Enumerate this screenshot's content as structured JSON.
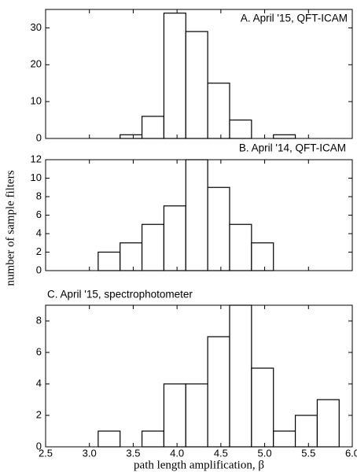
{
  "chart_data": [
    {
      "type": "histogram",
      "title": "A. April '15, QFT-ICAM",
      "title_position": "inside-right",
      "bins": [
        3.35,
        3.6,
        3.85,
        4.1,
        4.35,
        4.6,
        4.85,
        5.1,
        5.35
      ],
      "counts": [
        1,
        6,
        34,
        29,
        15,
        5,
        0,
        1
      ],
      "color": "#ffffff",
      "xlim": [
        2.5,
        6
      ],
      "ylim": [
        0,
        35
      ],
      "yticks": [
        0,
        10,
        20,
        30
      ]
    },
    {
      "type": "histogram",
      "title": "B. April '14, QFT-ICAM",
      "title_position": "above-right",
      "ylabel": "number of sample filters",
      "bins": [
        3.1,
        3.35,
        3.6,
        3.85,
        4.1,
        4.35,
        4.6,
        4.85,
        5.1
      ],
      "counts": [
        2,
        3,
        5,
        7,
        12,
        9,
        5,
        3
      ],
      "color": "#ffffff",
      "xlim": [
        2.5,
        6
      ],
      "ylim": [
        0,
        12
      ],
      "yticks": [
        0,
        2,
        4,
        6,
        8,
        10,
        12
      ]
    },
    {
      "type": "histogram",
      "title": "C. April '15, spectrophotometer",
      "title_position": "above-left",
      "xlabel": "path length amplification, β",
      "bins": [
        3.1,
        3.35,
        3.6,
        3.85,
        4.1,
        4.35,
        4.6,
        4.85,
        5.1,
        5.35,
        5.6,
        5.85
      ],
      "counts": [
        1,
        0,
        1,
        4,
        4,
        7,
        9,
        5,
        1,
        2,
        3
      ],
      "color": "#ffffff",
      "xlim": [
        2.5,
        6
      ],
      "ylim": [
        0,
        9
      ],
      "xticks": [
        2.5,
        {
          "value": 3,
          "label": "3.0"
        },
        3.5,
        {
          "value": 4,
          "label": "4.0"
        },
        4.5,
        {
          "value": 5,
          "label": "5.0"
        },
        5.5,
        {
          "value": 6,
          "label": "6.0"
        }
      ],
      "yticks": [
        0,
        2,
        4,
        6,
        8
      ]
    }
  ]
}
